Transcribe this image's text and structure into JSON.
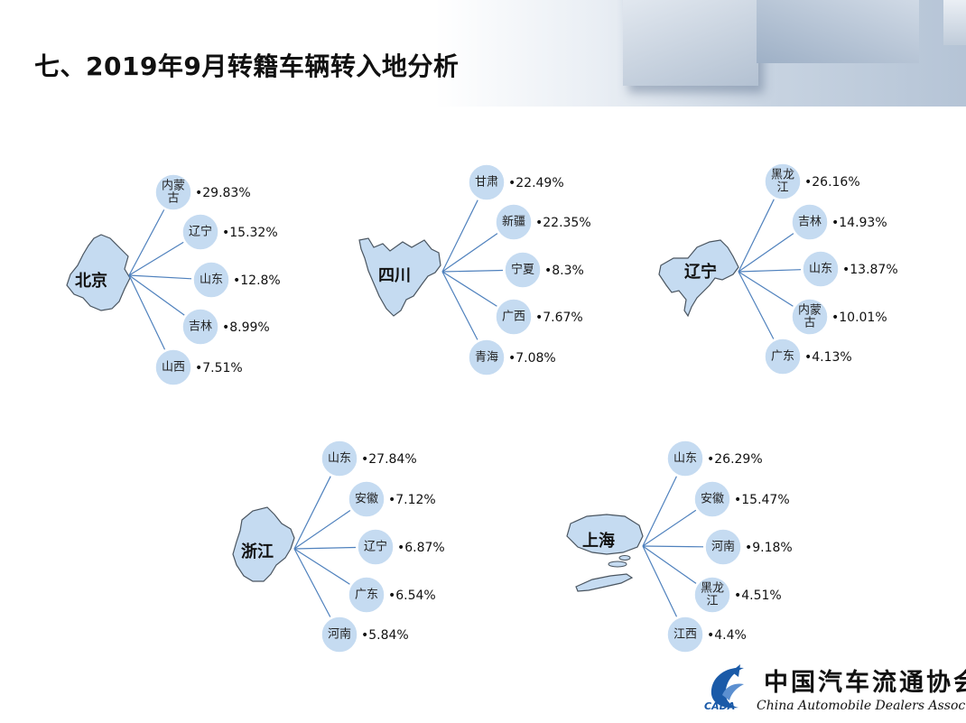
{
  "header": {
    "title": "七、2019年9月转籍车辆转入地分析"
  },
  "colors": {
    "bubble_fill": "#c5dbf1",
    "bubble_stroke": "#ffffff",
    "line": "#4f81bd",
    "map_fill": "#c5dbf1",
    "map_stroke": "#4a5560",
    "logo_blue": "#1a5aa8"
  },
  "groups": [
    {
      "name": "北京",
      "items": [
        {
          "label": "内蒙古",
          "label_lines": [
            "内蒙",
            "古"
          ],
          "value": "•29.83%"
        },
        {
          "label": "辽宁",
          "label_lines": [
            "辽宁"
          ],
          "value": "•15.32%"
        },
        {
          "label": "山东",
          "label_lines": [
            "山东"
          ],
          "value": "•12.8%"
        },
        {
          "label": "吉林",
          "label_lines": [
            "吉林"
          ],
          "value": "•8.99%"
        },
        {
          "label": "山西",
          "label_lines": [
            "山西"
          ],
          "value": "•7.51%"
        }
      ]
    },
    {
      "name": "四川",
      "items": [
        {
          "label": "甘肃",
          "label_lines": [
            "甘肃"
          ],
          "value": "•22.49%"
        },
        {
          "label": "新疆",
          "label_lines": [
            "新疆"
          ],
          "value": "•22.35%"
        },
        {
          "label": "宁夏",
          "label_lines": [
            "宁夏"
          ],
          "value": "•8.3%"
        },
        {
          "label": "广西",
          "label_lines": [
            "广西"
          ],
          "value": "•7.67%"
        },
        {
          "label": "青海",
          "label_lines": [
            "青海"
          ],
          "value": "•7.08%"
        }
      ]
    },
    {
      "name": "辽宁",
      "items": [
        {
          "label": "黑龙江",
          "label_lines": [
            "黑龙",
            "江"
          ],
          "value": "•26.16%"
        },
        {
          "label": "吉林",
          "label_lines": [
            "吉林"
          ],
          "value": "•14.93%"
        },
        {
          "label": "山东",
          "label_lines": [
            "山东"
          ],
          "value": "•13.87%"
        },
        {
          "label": "内蒙古",
          "label_lines": [
            "内蒙",
            "古"
          ],
          "value": "•10.01%"
        },
        {
          "label": "广东",
          "label_lines": [
            "广东"
          ],
          "value": "•4.13%"
        }
      ]
    },
    {
      "name": "浙江",
      "items": [
        {
          "label": "山东",
          "label_lines": [
            "山东"
          ],
          "value": "•27.84%"
        },
        {
          "label": "安徽",
          "label_lines": [
            "安徽"
          ],
          "value": "•7.12%"
        },
        {
          "label": "辽宁",
          "label_lines": [
            "辽宁"
          ],
          "value": "•6.87%"
        },
        {
          "label": "广东",
          "label_lines": [
            "广东"
          ],
          "value": "•6.54%"
        },
        {
          "label": "河南",
          "label_lines": [
            "河南"
          ],
          "value": "•5.84%"
        }
      ]
    },
    {
      "name": "上海",
      "items": [
        {
          "label": "山东",
          "label_lines": [
            "山东"
          ],
          "value": "•26.29%"
        },
        {
          "label": "安徽",
          "label_lines": [
            "安徽"
          ],
          "value": "•15.47%"
        },
        {
          "label": "河南",
          "label_lines": [
            "河南"
          ],
          "value": "•9.18%"
        },
        {
          "label": "黑龙江",
          "label_lines": [
            "黑龙",
            "江"
          ],
          "value": "•4.51%"
        },
        {
          "label": "江西",
          "label_lines": [
            "江西"
          ],
          "value": "•4.4%"
        }
      ]
    }
  ],
  "logo": {
    "cn": "中国汽车流通协会",
    "en": "China Automobile Dealers Association",
    "abbr": "CADA"
  }
}
